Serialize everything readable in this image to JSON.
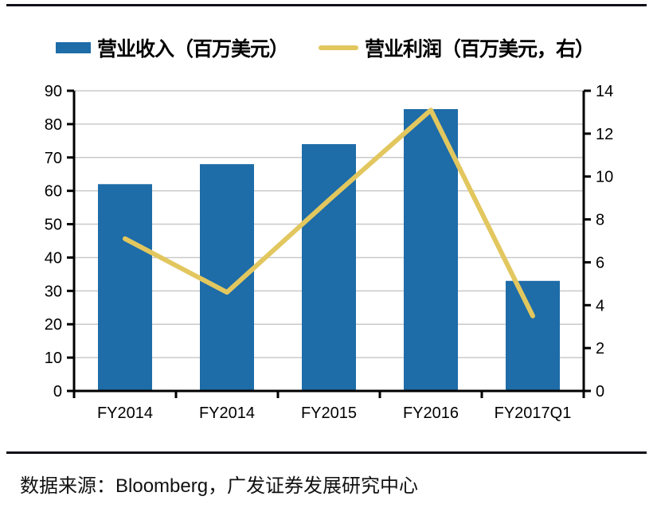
{
  "legend": {
    "series1": "营业收入（百万美元）",
    "series2": "营业利润（百万美元，右）"
  },
  "footer": {
    "prefix": "数据来源：",
    "source": "Bloomberg",
    "suffix": "，广发证券发展研究中心"
  },
  "colors": {
    "bar": "#1E6CA8",
    "line": "#E2C75F",
    "grid": "#C9C9C9",
    "axis": "#000000",
    "rule": "#101018"
  },
  "chart_data": {
    "type": "bar",
    "subtype": "bar-line combo, dual axis",
    "categories": [
      "FY2014",
      "FY2014",
      "FY2015",
      "FY2016",
      "FY2017Q1"
    ],
    "series": [
      {
        "name": "营业收入（百万美元）",
        "type": "bar",
        "axis": "left",
        "values": [
          62,
          68,
          74,
          84.5,
          33
        ]
      },
      {
        "name": "营业利润（百万美元，右）",
        "type": "line",
        "axis": "right",
        "values": [
          7.1,
          4.6,
          8.9,
          13.1,
          3.5
        ]
      }
    ],
    "left_axis": {
      "min": 0,
      "max": 90,
      "step": 10
    },
    "right_axis": {
      "min": 0,
      "max": 14,
      "step": 2
    },
    "grid": true,
    "legend_position": "top",
    "title": "",
    "xlabel": "",
    "ylabel": ""
  }
}
